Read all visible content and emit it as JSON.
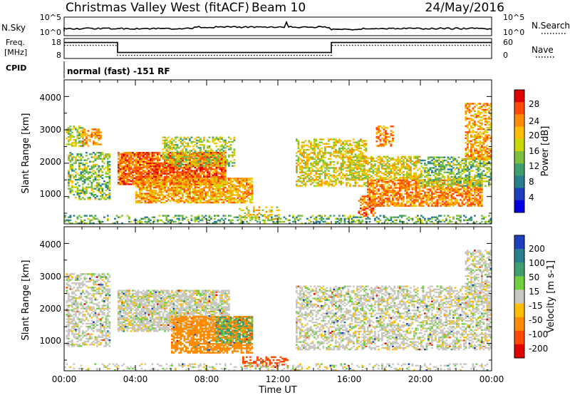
{
  "header": {
    "station": "Christmas Valley West (fitACF)",
    "beam": "Beam 10",
    "date": "24/May/2016"
  },
  "noise_panel": {
    "left_label": "N.Sky",
    "right_label": "N.Search",
    "left_ticks": [
      "10^5",
      "10^0"
    ],
    "right_ticks": [
      "10^5",
      "10^0"
    ]
  },
  "freq_panel": {
    "left_label_1": "Freq.",
    "left_label_2": "[MHz]",
    "right_label": "Nave",
    "left_ticks": [
      "18",
      "8"
    ],
    "right_ticks": [
      "60",
      "0"
    ],
    "freq_steps": [
      {
        "start_h": 0.0,
        "end_h": 3.0,
        "level": 0.8
      },
      {
        "start_h": 3.0,
        "end_h": 15.0,
        "level": 0.3
      },
      {
        "start_h": 15.0,
        "end_h": 24.0,
        "level": 0.8
      }
    ]
  },
  "cpid": {
    "label": "CPID",
    "text": "normal (fast) -151 RF"
  },
  "power_panel": {
    "ylabel": "Slant Range [km]",
    "yticks": [
      "1000",
      "2000",
      "3000",
      "4000"
    ],
    "colorbar_label": "Power [dB]",
    "colorbar_ticks": [
      "28",
      "24",
      "20",
      "16",
      "12",
      "8",
      "4"
    ],
    "colors": [
      "#e00000",
      "#ff4a00",
      "#ff8c00",
      "#ffbf00",
      "#c9d800",
      "#7fbf3f",
      "#3f9f6f",
      "#2a7f8f",
      "#1f3fbf",
      "#0000e0"
    ]
  },
  "velocity_panel": {
    "ylabel": "Slant Range [km]",
    "yticks": [
      "1000",
      "2000",
      "3000",
      "4000"
    ],
    "colorbar_label": "Velocity [m s-1]",
    "colorbar_ticks": [
      "200",
      "100",
      "50",
      "15",
      "-15",
      "-50",
      "-100",
      "-200"
    ],
    "colors": [
      "#1f3fbf",
      "#2a7f8f",
      "#3f9f6f",
      "#6fcf3f",
      "#c8c8c0",
      "#ffbf00",
      "#ff8c00",
      "#ff4a00",
      "#e00000"
    ]
  },
  "x_axis": {
    "label": "Time UT",
    "ticks": [
      "00:00",
      "04:00",
      "08:00",
      "12:00",
      "16:00",
      "20:00",
      "00:00"
    ]
  },
  "chart_data": {
    "type": "heatmap",
    "title": "Christmas Valley West (fitACF)",
    "x_range_hours": [
      0,
      24
    ],
    "y_range_km": [
      180,
      4500
    ],
    "ylabel": "Slant Range [km]",
    "xlabel": "Time UT",
    "power_patches": [
      {
        "t0": 0.1,
        "t1": 1.2,
        "r0": 2500,
        "r1": 3100,
        "level": 16,
        "density": 0.55
      },
      {
        "t0": 1.0,
        "t1": 2.1,
        "r0": 2500,
        "r1": 3000,
        "level": 24,
        "density": 0.5
      },
      {
        "t0": 0.2,
        "t1": 2.6,
        "r0": 900,
        "r1": 2300,
        "level": 14,
        "density": 0.45
      },
      {
        "t0": 3.0,
        "t1": 9.0,
        "r0": 1350,
        "r1": 2300,
        "level": 26,
        "density": 0.85
      },
      {
        "t0": 5.5,
        "t1": 9.5,
        "r0": 1900,
        "r1": 2800,
        "level": 16,
        "density": 0.45
      },
      {
        "t0": 4.0,
        "t1": 10.5,
        "r0": 800,
        "r1": 1550,
        "level": 22,
        "density": 0.7
      },
      {
        "t0": 0.0,
        "t1": 24.0,
        "r0": 180,
        "r1": 420,
        "level": 12,
        "density": 0.35
      },
      {
        "t0": 9.8,
        "t1": 12.0,
        "r0": 300,
        "r1": 700,
        "level": 18,
        "density": 0.3
      },
      {
        "t0": 13.0,
        "t1": 17.0,
        "r0": 1300,
        "r1": 2700,
        "level": 18,
        "density": 0.5
      },
      {
        "t0": 16.0,
        "t1": 20.0,
        "r0": 1500,
        "r1": 2200,
        "level": 18,
        "density": 0.6
      },
      {
        "t0": 17.0,
        "t1": 23.5,
        "r0": 700,
        "r1": 1500,
        "level": 24,
        "density": 0.7
      },
      {
        "t0": 20.0,
        "t1": 24.0,
        "r0": 1300,
        "r1": 2200,
        "level": 14,
        "density": 0.55
      },
      {
        "t0": 22.5,
        "t1": 24.0,
        "r0": 2100,
        "r1": 3800,
        "level": 22,
        "density": 0.5
      },
      {
        "t0": 17.5,
        "t1": 18.5,
        "r0": 2500,
        "r1": 3100,
        "level": 24,
        "density": 0.45
      },
      {
        "t0": 16.5,
        "t1": 17.5,
        "r0": 400,
        "r1": 1000,
        "level": 26,
        "density": 0.4
      }
    ],
    "velocity_patches": [
      {
        "t0": 0.1,
        "t1": 2.6,
        "r0": 900,
        "r1": 3100,
        "vel": 0,
        "density": 0.5
      },
      {
        "t0": 3.0,
        "t1": 9.2,
        "r0": 1350,
        "r1": 2600,
        "vel": 0,
        "density": 0.75
      },
      {
        "t0": 6.0,
        "t1": 10.5,
        "r0": 700,
        "r1": 1800,
        "vel": -70,
        "density": 0.7
      },
      {
        "t0": 8.5,
        "t1": 10.5,
        "r0": 1000,
        "r1": 1800,
        "vel": 40,
        "density": 0.35
      },
      {
        "t0": 13.0,
        "t1": 24.0,
        "r0": 800,
        "r1": 2700,
        "vel": 0,
        "density": 0.5
      },
      {
        "t0": 22.5,
        "t1": 24.0,
        "r0": 2100,
        "r1": 3800,
        "vel": 0,
        "density": 0.45
      },
      {
        "t0": 10.0,
        "t1": 12.5,
        "r0": 300,
        "r1": 600,
        "vel": -150,
        "density": 0.4
      },
      {
        "t0": 0.0,
        "t1": 24.0,
        "r0": 180,
        "r1": 400,
        "vel": 0,
        "density": 0.25
      }
    ]
  }
}
